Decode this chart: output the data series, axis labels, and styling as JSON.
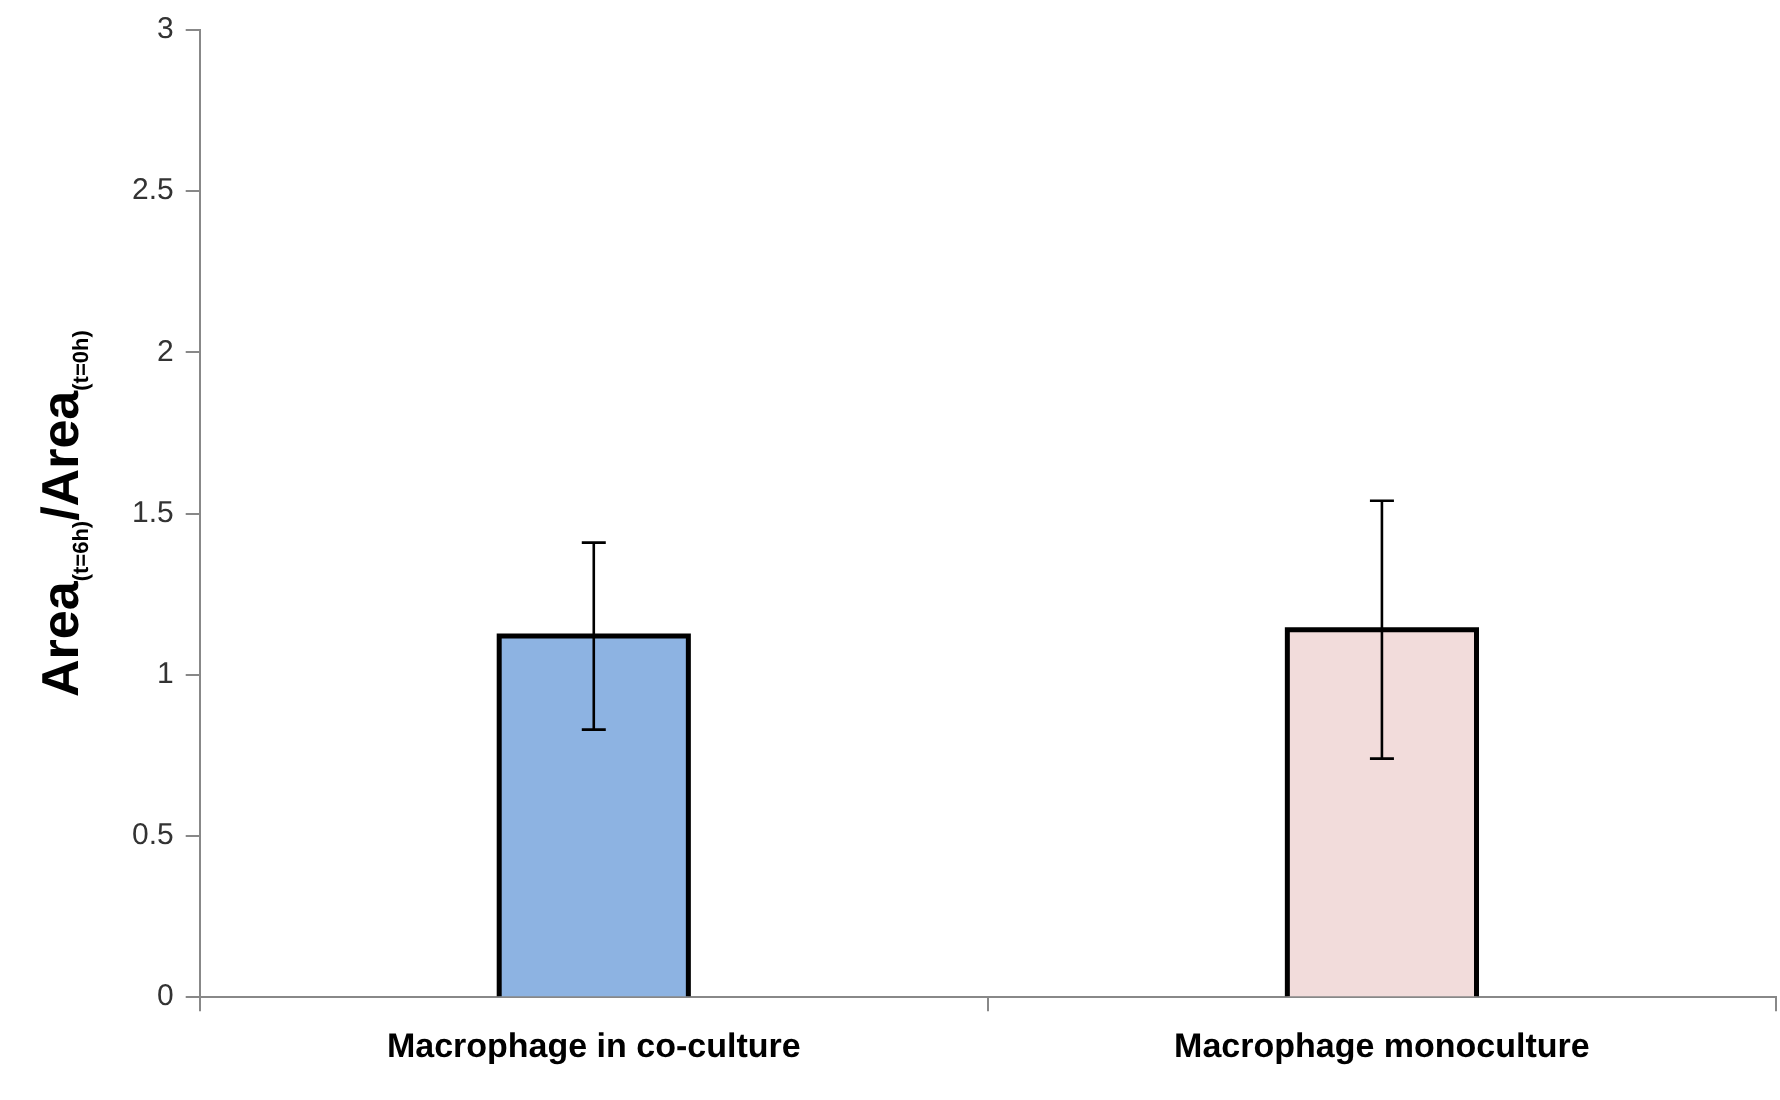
{
  "chart_data": {
    "type": "bar",
    "ylabel": "Area$_{(t=6h)}$/Area$_{(t=0h)}$",
    "categories": [
      "Macrophage in co-culture",
      "Macrophage monoculture"
    ],
    "values": [
      1.12,
      1.14
    ],
    "errors": [
      0.29,
      0.4
    ],
    "colors": [
      "#8db3e2",
      "#f2dcdb"
    ],
    "ylim": [
      0,
      3
    ],
    "yticks": [
      0,
      0.5,
      1,
      1.5,
      2,
      2.5,
      3
    ],
    "grid": false,
    "legend": false
  }
}
